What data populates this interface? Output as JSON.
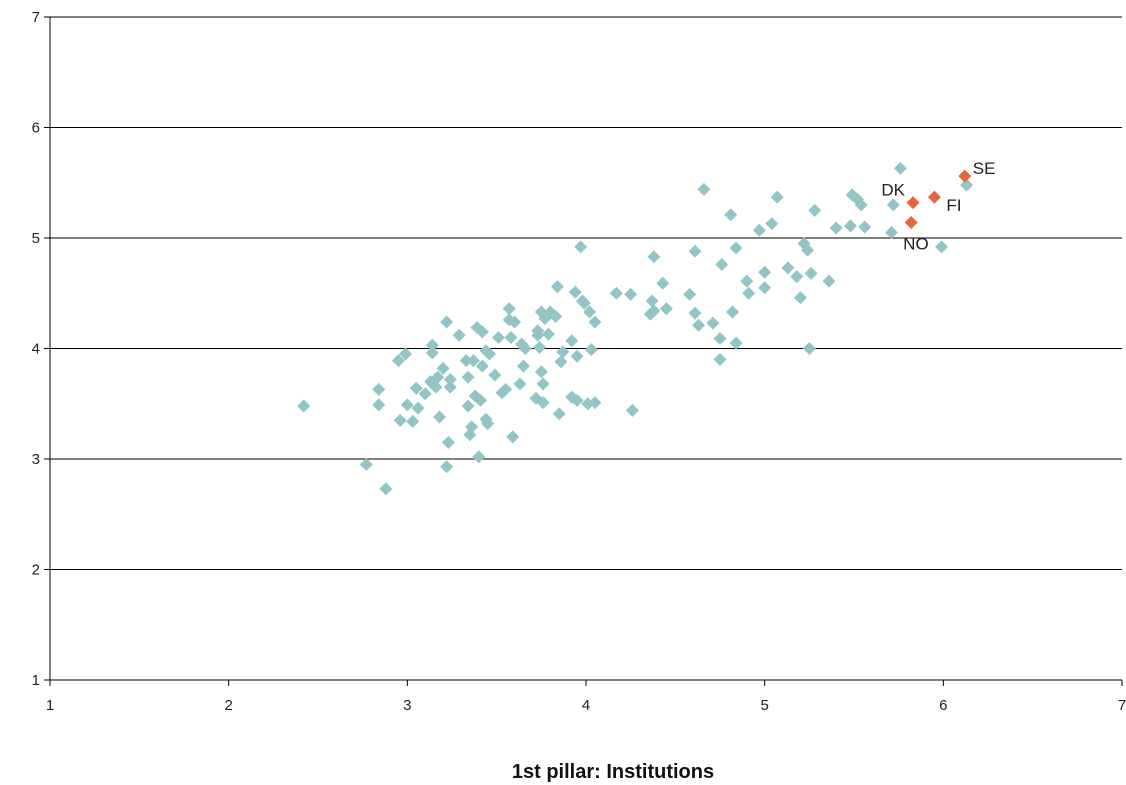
{
  "chart_data": {
    "type": "scatter",
    "title": "",
    "xlabel": "1st pillar: Institutions",
    "ylabel": "",
    "xlim": [
      1,
      7
    ],
    "ylim": [
      1,
      7
    ],
    "xticks": [
      "1",
      "2",
      "3",
      "4",
      "5",
      "6",
      "7"
    ],
    "yticks": [
      "1",
      "2",
      "3",
      "4",
      "5",
      "6",
      "7"
    ],
    "grid": "horizontal",
    "legend": "none",
    "colors": {
      "other": "#93c5c6",
      "highlight": "#e8643c"
    },
    "series": [
      {
        "values": [
          [
            2.42,
            3.48
          ],
          [
            2.77,
            2.95
          ],
          [
            2.84,
            3.63
          ],
          [
            2.84,
            3.49
          ],
          [
            2.88,
            2.73
          ],
          [
            2.95,
            3.89
          ],
          [
            2.96,
            3.35
          ],
          [
            2.99,
            3.95
          ],
          [
            3.0,
            3.49
          ],
          [
            3.03,
            3.34
          ],
          [
            3.05,
            3.64
          ],
          [
            3.06,
            3.46
          ],
          [
            3.1,
            3.59
          ],
          [
            3.13,
            3.7
          ],
          [
            3.14,
            3.96
          ],
          [
            3.14,
            4.03
          ],
          [
            3.16,
            3.65
          ],
          [
            3.17,
            3.74
          ],
          [
            3.18,
            3.38
          ],
          [
            3.2,
            3.82
          ],
          [
            3.22,
            4.24
          ],
          [
            3.22,
            2.93
          ],
          [
            3.23,
            3.15
          ],
          [
            3.24,
            3.72
          ],
          [
            3.24,
            3.65
          ],
          [
            3.29,
            4.12
          ],
          [
            3.33,
            3.89
          ],
          [
            3.34,
            3.74
          ],
          [
            3.34,
            3.48
          ],
          [
            3.35,
            3.22
          ],
          [
            3.36,
            3.29
          ],
          [
            3.37,
            3.89
          ],
          [
            3.38,
            3.57
          ],
          [
            3.39,
            4.19
          ],
          [
            3.4,
            3.02
          ],
          [
            3.41,
            3.53
          ],
          [
            3.42,
            4.15
          ],
          [
            3.42,
            3.84
          ],
          [
            3.44,
            3.36
          ],
          [
            3.44,
            3.98
          ],
          [
            3.45,
            3.32
          ],
          [
            3.46,
            3.95
          ],
          [
            3.49,
            3.76
          ],
          [
            3.51,
            4.1
          ],
          [
            3.53,
            3.6
          ],
          [
            3.55,
            3.63
          ],
          [
            3.57,
            4.36
          ],
          [
            3.57,
            4.26
          ],
          [
            3.58,
            4.1
          ],
          [
            3.59,
            3.2
          ],
          [
            3.6,
            4.24
          ],
          [
            3.63,
            3.68
          ],
          [
            3.64,
            4.04
          ],
          [
            3.65,
            3.84
          ],
          [
            3.66,
            4.0
          ],
          [
            3.72,
            3.55
          ],
          [
            3.73,
            4.16
          ],
          [
            3.73,
            4.12
          ],
          [
            3.74,
            4.01
          ],
          [
            3.75,
            3.79
          ],
          [
            3.75,
            4.33
          ],
          [
            3.76,
            3.68
          ],
          [
            3.76,
            3.51
          ],
          [
            3.77,
            4.27
          ],
          [
            3.79,
            4.13
          ],
          [
            3.8,
            4.33
          ],
          [
            3.83,
            4.29
          ],
          [
            3.84,
            4.56
          ],
          [
            3.85,
            3.41
          ],
          [
            3.86,
            3.88
          ],
          [
            3.87,
            3.97
          ],
          [
            3.92,
            4.07
          ],
          [
            3.92,
            3.56
          ],
          [
            3.94,
            4.51
          ],
          [
            3.95,
            3.53
          ],
          [
            3.95,
            3.93
          ],
          [
            3.97,
            4.92
          ],
          [
            3.98,
            4.43
          ],
          [
            3.99,
            4.41
          ],
          [
            4.01,
            3.5
          ],
          [
            4.02,
            4.33
          ],
          [
            4.03,
            3.99
          ],
          [
            4.05,
            4.24
          ],
          [
            4.05,
            3.51
          ],
          [
            4.17,
            4.5
          ],
          [
            4.25,
            4.49
          ],
          [
            4.26,
            3.44
          ],
          [
            4.36,
            4.31
          ],
          [
            4.37,
            4.43
          ],
          [
            4.38,
            4.34
          ],
          [
            4.38,
            4.83
          ],
          [
            4.43,
            4.59
          ],
          [
            4.45,
            4.36
          ],
          [
            4.58,
            4.49
          ],
          [
            4.61,
            4.88
          ],
          [
            4.61,
            4.32
          ],
          [
            4.63,
            4.21
          ],
          [
            4.66,
            5.44
          ],
          [
            4.71,
            4.23
          ],
          [
            4.75,
            4.09
          ],
          [
            4.75,
            3.9
          ],
          [
            4.76,
            4.76
          ],
          [
            4.81,
            5.21
          ],
          [
            4.82,
            4.33
          ],
          [
            4.84,
            4.91
          ],
          [
            4.84,
            4.05
          ],
          [
            4.9,
            4.61
          ],
          [
            4.91,
            4.5
          ],
          [
            4.97,
            5.07
          ],
          [
            5.0,
            4.69
          ],
          [
            5.0,
            4.55
          ],
          [
            5.04,
            5.13
          ],
          [
            5.07,
            5.37
          ],
          [
            5.13,
            4.73
          ],
          [
            5.18,
            4.65
          ],
          [
            5.2,
            4.46
          ],
          [
            5.22,
            4.95
          ],
          [
            5.24,
            4.89
          ],
          [
            5.25,
            4.0
          ],
          [
            5.26,
            4.68
          ],
          [
            5.28,
            5.25
          ],
          [
            5.36,
            4.61
          ],
          [
            5.4,
            5.09
          ],
          [
            5.48,
            5.11
          ],
          [
            5.49,
            5.39
          ],
          [
            5.52,
            5.35
          ],
          [
            5.54,
            5.3
          ],
          [
            5.56,
            5.1
          ],
          [
            5.71,
            5.05
          ],
          [
            5.72,
            5.3
          ],
          [
            5.76,
            5.63
          ],
          [
            5.99,
            4.92
          ],
          [
            6.13,
            5.48
          ]
        ]
      },
      {
        "values": [
          [
            6.12,
            5.56
          ],
          [
            5.95,
            5.37
          ],
          [
            5.83,
            5.32
          ],
          [
            5.82,
            5.14
          ]
        ],
        "labels": [
          "SE",
          "FI",
          "DK",
          "NO"
        ]
      }
    ]
  }
}
